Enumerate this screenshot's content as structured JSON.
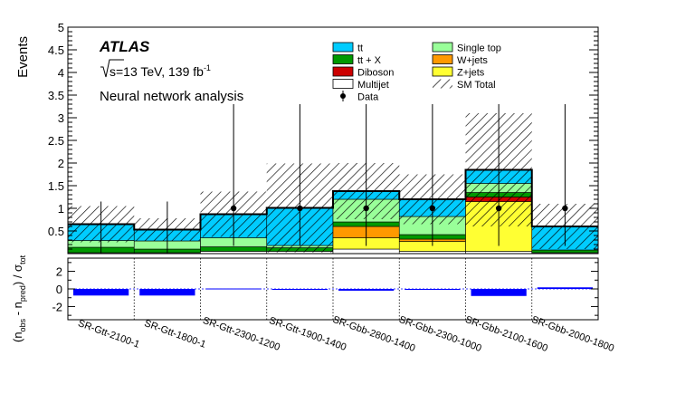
{
  "chart_data": {
    "type": "bar",
    "subtype": "stacked-histogram-with-ratio-panel",
    "experiment": "ATLAS",
    "energy_label": "s=13 TeV, 139 fb",
    "energy_label_superscript": "-1",
    "analysis_label": "Neural network analysis",
    "ylabel": "Events",
    "ratio_ylabel": "(n_obs - n_pred) / σ_tot",
    "ylim": [
      0,
      5
    ],
    "yticks": [
      "0.5",
      "1",
      "1.5",
      "2",
      "2.5",
      "3",
      "3.5",
      "4",
      "4.5",
      "5"
    ],
    "ratio_ylim": [
      -3.5,
      3.5
    ],
    "ratio_yticks": [
      "2",
      "0",
      "-2"
    ],
    "categories": [
      "SR-Gtt-2100-1",
      "SR-Gtt-1800-1",
      "SR-Gtt-2300-1200",
      "SR-Gtt-1900-1400",
      "SR-Gbb-2800-1400",
      "SR-Gbb-2300-1000",
      "SR-Gbb-2100-1600",
      "SR-Gbb-2000-1800"
    ],
    "series": [
      {
        "name": "Multijet",
        "color": "#ffffff",
        "values": [
          0.02,
          0.02,
          0.05,
          0.05,
          0.1,
          0.05,
          0.05,
          0.02
        ]
      },
      {
        "name": "Z+jets",
        "color": "#ffff33",
        "values": [
          0.0,
          0.0,
          0.0,
          0.0,
          0.25,
          0.22,
          1.1,
          0.0
        ]
      },
      {
        "name": "W+jets",
        "color": "#ff9900",
        "values": [
          0.0,
          0.0,
          0.0,
          0.0,
          0.25,
          0.05,
          0.0,
          0.0
        ]
      },
      {
        "name": "Diboson",
        "color": "#cc0000",
        "values": [
          0.0,
          0.0,
          0.0,
          0.0,
          0.0,
          0.0,
          0.1,
          0.0
        ]
      },
      {
        "name": "tt + X",
        "color": "#009900",
        "values": [
          0.12,
          0.08,
          0.1,
          0.08,
          0.1,
          0.1,
          0.1,
          0.06
        ]
      },
      {
        "name": "Single top",
        "color": "#99ff99",
        "values": [
          0.15,
          0.18,
          0.2,
          0.05,
          0.5,
          0.4,
          0.2,
          0.0
        ]
      },
      {
        "name": "tt",
        "color": "#00ccff",
        "values": [
          0.36,
          0.25,
          0.52,
          0.83,
          0.18,
          0.38,
          0.3,
          0.52
        ]
      }
    ],
    "sm_total": [
      0.65,
      0.53,
      0.87,
      1.01,
      1.38,
      1.2,
      1.85,
      0.6
    ],
    "sm_total_uncertainty": [
      0.4,
      0.25,
      0.5,
      0.98,
      0.62,
      0.55,
      1.25,
      0.5
    ],
    "data": [
      0,
      0,
      1,
      1,
      1,
      1,
      1,
      1
    ],
    "data_error_up": [
      1.15,
      1.15,
      2.3,
      2.3,
      2.3,
      2.3,
      2.3,
      2.3
    ],
    "data_error_down": [
      0,
      0,
      0.83,
      0.83,
      0.83,
      0.83,
      0.83,
      0.83
    ],
    "significance": [
      -0.75,
      -0.75,
      0.05,
      0.0,
      -0.2,
      -0.08,
      -0.8,
      0.18
    ],
    "legend": [
      {
        "label": "tt",
        "kind": "fill",
        "color": "#00ccff"
      },
      {
        "label": "tt + X",
        "kind": "fill",
        "color": "#009900"
      },
      {
        "label": "Diboson",
        "kind": "fill",
        "color": "#cc0000"
      },
      {
        "label": "Multijet",
        "kind": "fill",
        "color": "#ffffff"
      },
      {
        "label": "Data",
        "kind": "marker",
        "color": "#000000"
      },
      {
        "label": "Single top",
        "kind": "fill",
        "color": "#99ff99"
      },
      {
        "label": "W+jets",
        "kind": "fill",
        "color": "#ff9900"
      },
      {
        "label": "Z+jets",
        "kind": "fill",
        "color": "#ffff33"
      },
      {
        "label": "SM Total",
        "kind": "hatch",
        "color": "#000000"
      }
    ]
  },
  "colors": {
    "significance_bar": "#0000ff",
    "frame": "#000000",
    "hatch": "#000000"
  }
}
